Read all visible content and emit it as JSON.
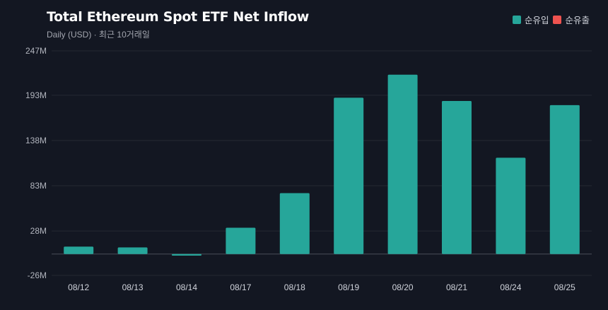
{
  "chart_data": {
    "type": "bar",
    "title": "Total Ethereum Spot ETF Net Inflow",
    "subtitle": "Daily (USD) · 최근 10거래일",
    "categories": [
      "08/12",
      "08/13",
      "08/14",
      "08/17",
      "08/18",
      "08/19",
      "08/20",
      "08/21",
      "08/24",
      "08/25"
    ],
    "values": [
      9,
      8,
      -2,
      32,
      74,
      190,
      218,
      186,
      117,
      181
    ],
    "unit": "M",
    "ylim": [
      -26,
      247
    ],
    "yticks": [
      247,
      193,
      138,
      83,
      28,
      -26
    ],
    "ytick_labels": [
      "247M",
      "193M",
      "138M",
      "83M",
      "28M",
      "-26M"
    ],
    "grid": true,
    "legend": {
      "position": "top-right",
      "items": [
        {
          "label": "순유입",
          "color": "#26a69a"
        },
        {
          "label": "순유출",
          "color": "#ef5350"
        }
      ]
    },
    "colors": {
      "inflow": "#26a69a",
      "outflow": "#ef5350"
    }
  }
}
